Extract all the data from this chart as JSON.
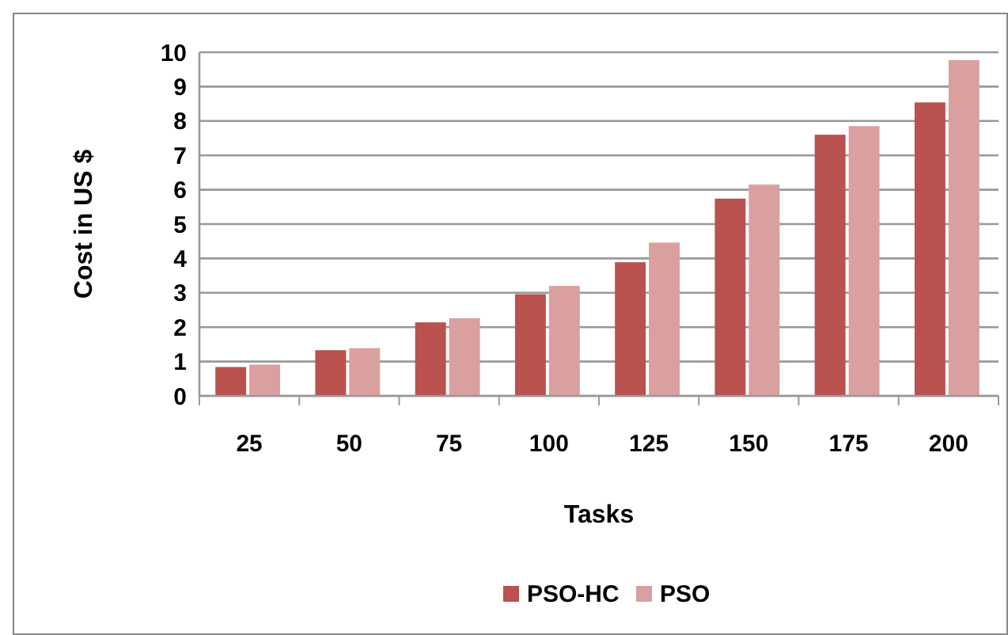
{
  "chart_data": {
    "type": "bar",
    "xlabel": "Tasks",
    "ylabel": "Cost in US $",
    "categories": [
      "25",
      "50",
      "75",
      "100",
      "125",
      "150",
      "175",
      "200"
    ],
    "series": [
      {
        "name": "PSO-HC",
        "color": "#b9524e",
        "values": [
          0.84,
          1.33,
          2.14,
          2.96,
          3.89,
          5.74,
          7.6,
          8.54
        ]
      },
      {
        "name": "PSO",
        "color": "#d9a09f",
        "values": [
          0.91,
          1.39,
          2.26,
          3.2,
          4.46,
          6.15,
          7.85,
          9.77
        ]
      }
    ],
    "ylim": [
      0,
      10
    ],
    "yticks": [
      0,
      1,
      2,
      3,
      4,
      5,
      6,
      7,
      8,
      9,
      10
    ],
    "grid": "y",
    "legend": "bottom"
  }
}
